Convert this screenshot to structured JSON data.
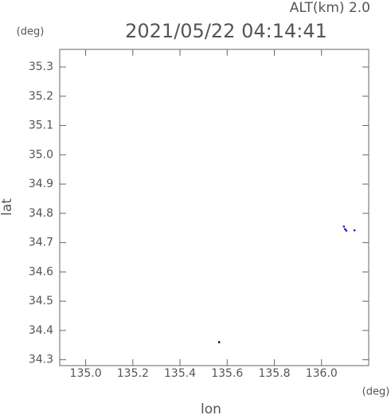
{
  "chart_data": {
    "type": "scatter",
    "title": "2021/05/22 04:14:41",
    "subtitle": "ALT(km) 2.0",
    "y_unit": "(deg)",
    "x_unit": "(deg)",
    "xlabel": "lon",
    "ylabel": "lat",
    "xlim": [
      134.89,
      136.2
    ],
    "ylim": [
      34.28,
      35.36
    ],
    "xticks": [
      {
        "value": 135.0,
        "label": "135.0"
      },
      135.2,
      135.4,
      135.6,
      135.8,
      {
        "value": 136.0,
        "label": "136.0"
      }
    ],
    "yticks": [
      35.3,
      35.2,
      35.1,
      {
        "value": 35.0,
        "label": "35.0"
      },
      34.9,
      34.8,
      34.7,
      34.6,
      34.5,
      34.4,
      34.3
    ],
    "series": [
      {
        "color": "#1a1acc",
        "x": [
          136.095,
          136.1,
          136.105,
          136.14
        ],
        "y": [
          34.755,
          34.746,
          34.741,
          34.742
        ]
      },
      {
        "color": "#000000",
        "x": [
          135.566
        ],
        "y": [
          34.36
        ]
      }
    ]
  }
}
